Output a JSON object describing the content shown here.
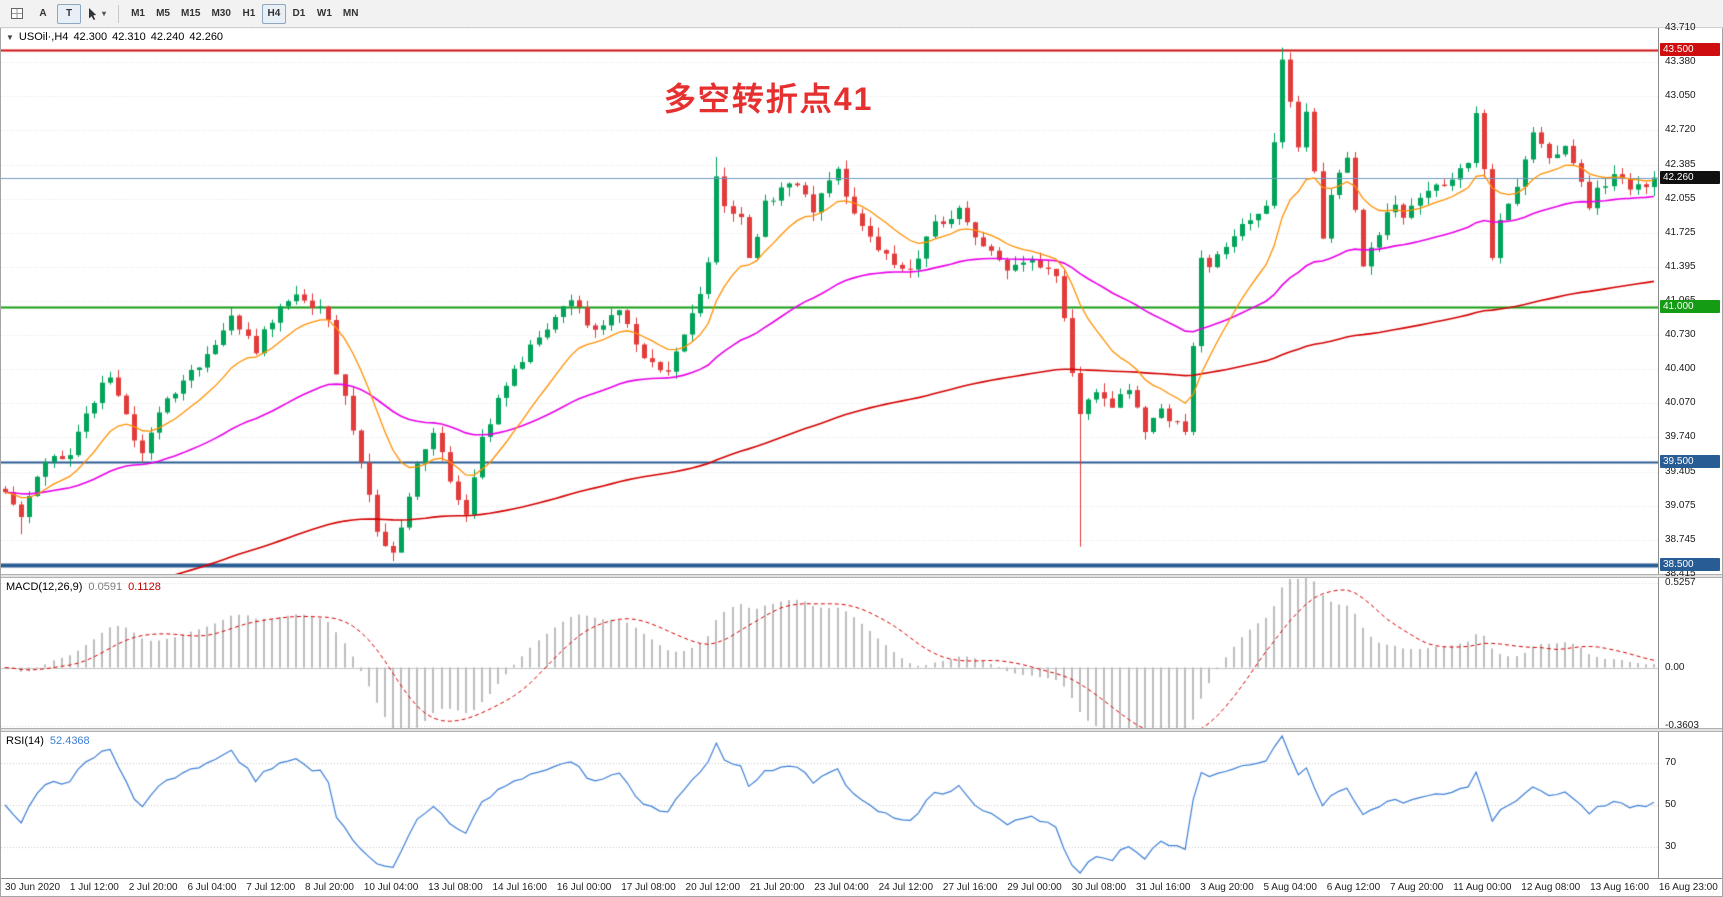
{
  "toolbar": {
    "buttons": {
      "a_label": "A",
      "t_label": "T"
    },
    "timeframes": [
      "M1",
      "M5",
      "M15",
      "M30",
      "H1",
      "H4",
      "D1",
      "W1",
      "MN"
    ],
    "active_timeframe": "H4"
  },
  "window": {
    "expand_icon": "▼",
    "symbol_header": "USOil·,H4",
    "ohlc": {
      "open": "42.300",
      "high": "42.310",
      "low": "42.240",
      "close": "42.260"
    }
  },
  "chart_data": {
    "type": "candlestick",
    "symbol": "USOil",
    "timeframe": "H4",
    "bars": 205,
    "ylim": [
      38.415,
      43.71
    ],
    "y_ticks": [
      "43.710",
      "43.380",
      "43.050",
      "42.720",
      "42.385",
      "42.055",
      "41.725",
      "41.395",
      "41.065",
      "40.730",
      "40.400",
      "40.070",
      "39.740",
      "39.405",
      "39.075",
      "38.745",
      "38.415"
    ],
    "current_price": 42.26,
    "current_price_label": "42.260",
    "hlines": [
      {
        "price": 43.5,
        "label": "43.500",
        "color": "#CE0E0E",
        "width": 2
      },
      {
        "price": 41.0,
        "label": "41.000",
        "color": "#159C15",
        "width": 2
      },
      {
        "price": 39.5,
        "label": "39.500",
        "color": "#285C94",
        "width": 2
      },
      {
        "price": 38.5,
        "label": "38.500",
        "color": "#285C94",
        "width": 4
      }
    ],
    "bid_line_color": "#6F9CC0",
    "annotation": {
      "text": "多空转折点41",
      "color": "#E63030"
    },
    "colors": {
      "up": "#00A35A",
      "down": "#E23B3B",
      "ma_fast": "#FF9000",
      "ma_mid": "#E800E8",
      "ma_slow": "#D40000",
      "grid": "#E4E4E4",
      "macd_hist": "#BDBDBD",
      "macd_signal": "#D40000",
      "rsi": "#3E7FD6",
      "current_box": "#101010"
    },
    "moving_averages": [
      {
        "name": "fast",
        "period": 12,
        "color_key": "ma_fast"
      },
      {
        "name": "mid",
        "period": 48,
        "color_key": "ma_mid"
      },
      {
        "name": "slow",
        "period": 160,
        "color_key": "ma_slow"
      }
    ],
    "price_anchors": [
      [
        0,
        39.2
      ],
      [
        2,
        38.95
      ],
      [
        5,
        39.5
      ],
      [
        8,
        39.6
      ],
      [
        11,
        40.1
      ],
      [
        13,
        40.35
      ],
      [
        16,
        39.7
      ],
      [
        17,
        39.55
      ],
      [
        19,
        40.0
      ],
      [
        22,
        40.3
      ],
      [
        25,
        40.5
      ],
      [
        28,
        40.9
      ],
      [
        31,
        40.6
      ],
      [
        34,
        41.05
      ],
      [
        37,
        41.1
      ],
      [
        40,
        40.9
      ],
      [
        41,
        40.4
      ],
      [
        44,
        39.5
      ],
      [
        46,
        38.85
      ],
      [
        48,
        38.6
      ],
      [
        51,
        39.5
      ],
      [
        53,
        39.8
      ],
      [
        55,
        39.3
      ],
      [
        57,
        39.0
      ],
      [
        59,
        39.7
      ],
      [
        61,
        40.1
      ],
      [
        64,
        40.5
      ],
      [
        67,
        40.8
      ],
      [
        70,
        41.1
      ],
      [
        73,
        40.75
      ],
      [
        76,
        40.95
      ],
      [
        79,
        40.5
      ],
      [
        82,
        40.35
      ],
      [
        85,
        40.9
      ],
      [
        87,
        41.4
      ],
      [
        88,
        42.3
      ],
      [
        89,
        42.0
      ],
      [
        91,
        41.9
      ],
      [
        92,
        41.45
      ],
      [
        94,
        42.0
      ],
      [
        97,
        42.25
      ],
      [
        100,
        41.95
      ],
      [
        103,
        42.3
      ],
      [
        106,
        41.75
      ],
      [
        109,
        41.5
      ],
      [
        112,
        41.35
      ],
      [
        115,
        41.8
      ],
      [
        118,
        41.95
      ],
      [
        121,
        41.6
      ],
      [
        124,
        41.35
      ],
      [
        127,
        41.5
      ],
      [
        130,
        41.3
      ],
      [
        132,
        40.4
      ],
      [
        133,
        39.95
      ],
      [
        135,
        40.2
      ],
      [
        137,
        40.05
      ],
      [
        139,
        40.2
      ],
      [
        141,
        39.8
      ],
      [
        143,
        40.0
      ],
      [
        145,
        39.85
      ],
      [
        146,
        39.75
      ],
      [
        148,
        41.5
      ],
      [
        149,
        41.4
      ],
      [
        151,
        41.6
      ],
      [
        154,
        41.85
      ],
      [
        156,
        41.95
      ],
      [
        157,
        42.6
      ],
      [
        158,
        43.4
      ],
      [
        159,
        43.0
      ],
      [
        160,
        42.55
      ],
      [
        161,
        42.85
      ],
      [
        162,
        42.3
      ],
      [
        163,
        41.7
      ],
      [
        164,
        42.1
      ],
      [
        166,
        42.5
      ],
      [
        167,
        41.9
      ],
      [
        168,
        41.4
      ],
      [
        170,
        41.75
      ],
      [
        172,
        42.0
      ],
      [
        173,
        41.85
      ],
      [
        175,
        42.1
      ],
      [
        178,
        42.2
      ],
      [
        181,
        42.4
      ],
      [
        182,
        42.85
      ],
      [
        183,
        42.3
      ],
      [
        184,
        41.5
      ],
      [
        185,
        41.8
      ],
      [
        187,
        42.2
      ],
      [
        189,
        42.7
      ],
      [
        191,
        42.45
      ],
      [
        193,
        42.55
      ],
      [
        195,
        42.2
      ],
      [
        196,
        42.0
      ],
      [
        197,
        42.15
      ],
      [
        199,
        42.3
      ],
      [
        201,
        42.15
      ],
      [
        203,
        42.2
      ],
      [
        204,
        42.26
      ]
    ],
    "wick_overrides": [
      {
        "b": 2,
        "low": 38.8
      },
      {
        "b": 48,
        "low": 38.54
      },
      {
        "b": 57,
        "low": 38.92
      },
      {
        "b": 88,
        "high": 42.46
      },
      {
        "b": 133,
        "low": 38.68
      },
      {
        "b": 158,
        "high": 43.52
      },
      {
        "b": 182,
        "high": 42.95
      }
    ],
    "macd": {
      "label": "MACD(12,26,9)",
      "main_value": "0.0591",
      "signal_value": "0.1128",
      "ylim": [
        -0.375,
        0.555
      ],
      "ticks": [
        {
          "v": 0.5257,
          "label": "0.5257"
        },
        {
          "v": 0,
          "label": "0.00"
        },
        {
          "v": -0.3603,
          "label": "-0.3603"
        }
      ]
    },
    "rsi": {
      "label": "RSI(14)",
      "value": "52.4368",
      "period": 14,
      "ylim": [
        15,
        85
      ],
      "ticks": [
        {
          "v": 70,
          "label": "70"
        },
        {
          "v": 50,
          "label": "50"
        },
        {
          "v": 30,
          "label": "30"
        }
      ]
    },
    "x_labels": [
      "30 Jun 2020",
      "1 Jul 12:00",
      "2 Jul 20:00",
      "6 Jul 04:00",
      "7 Jul 12:00",
      "8 Jul 20:00",
      "10 Jul 04:00",
      "13 Jul 08:00",
      "14 Jul 16:00",
      "16 Jul 00:00",
      "17 Jul 08:00",
      "20 Jul 12:00",
      "21 Jul 20:00",
      "23 Jul 04:00",
      "24 Jul 12:00",
      "27 Jul 16:00",
      "29 Jul 00:00",
      "30 Jul 08:00",
      "31 Jul 16:00",
      "3 Aug 20:00",
      "5 Aug 04:00",
      "6 Aug 12:00",
      "7 Aug 20:00",
      "11 Aug 00:00",
      "12 Aug 08:00",
      "13 Aug 16:00",
      "16 Aug 23:00"
    ],
    "render": {
      "seed": 20200816,
      "noise": 0.1,
      "wick": 0.09,
      "slow_start": 38.0,
      "slow_alpha": 0.012
    }
  }
}
